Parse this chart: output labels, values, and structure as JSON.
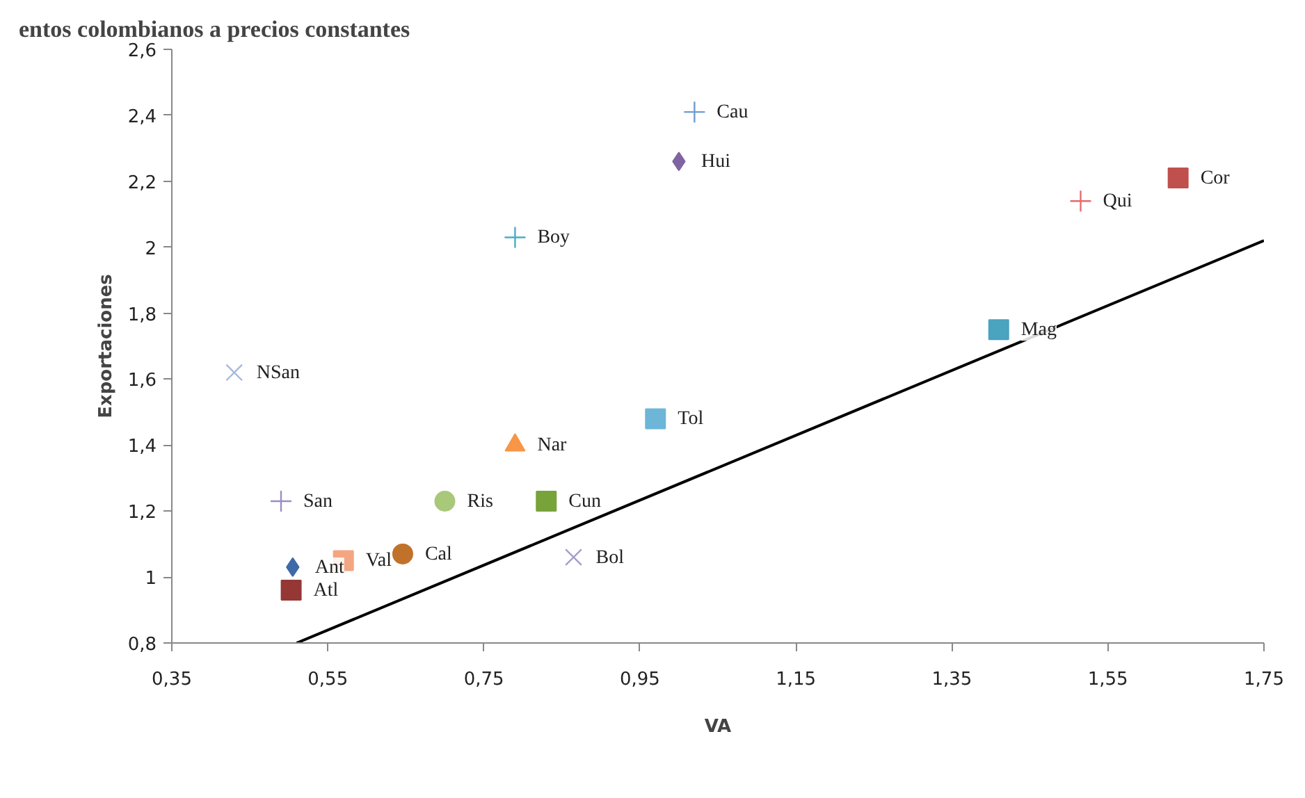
{
  "chart_data": {
    "type": "scatter",
    "title": "entos colombianos a precios constantes",
    "xlabel": "VA",
    "ylabel": "Exportaciones",
    "xlim": [
      0.35,
      1.75
    ],
    "ylim": [
      0.8,
      2.6
    ],
    "xticks": [
      {
        "value": 0.35,
        "label": "0,35"
      },
      {
        "value": 0.55,
        "label": "0,55"
      },
      {
        "value": 0.75,
        "label": "0,75"
      },
      {
        "value": 0.95,
        "label": "0,95"
      },
      {
        "value": 1.15,
        "label": "1,15"
      },
      {
        "value": 1.35,
        "label": "1,35"
      },
      {
        "value": 1.55,
        "label": "1,55"
      },
      {
        "value": 1.75,
        "label": "1,75"
      }
    ],
    "yticks": [
      {
        "value": 0.8,
        "label": "0,8"
      },
      1,
      {
        "value": 1.2,
        "label": "1,2"
      },
      {
        "value": 1.4,
        "label": "1,4"
      },
      {
        "value": 1.6,
        "label": "1,6"
      },
      {
        "value": 1.8,
        "label": "1,8"
      },
      2,
      {
        "value": 2.2,
        "label": "2,2"
      },
      {
        "value": 2.4,
        "label": "2,4"
      },
      {
        "value": 2.6,
        "label": "2,6"
      }
    ],
    "grid": false,
    "series": [
      {
        "name": "Cau",
        "color": "#6f9bd4",
        "marker": "cross",
        "x": [
          1.02
        ],
        "values": [
          2.41
        ]
      },
      {
        "name": "Hui",
        "color": "#8064a2",
        "marker": "diamond",
        "x": [
          1.0
        ],
        "values": [
          2.26
        ]
      },
      {
        "name": "Boy",
        "color": "#4bacc6",
        "marker": "cross",
        "x": [
          0.79
        ],
        "values": [
          2.03
        ]
      },
      {
        "name": "NSan",
        "color": "#a5b8e0",
        "marker": "x",
        "x": [
          0.43
        ],
        "values": [
          1.62
        ]
      },
      {
        "name": "Qui",
        "color": "#e46c6c",
        "marker": "cross",
        "x": [
          1.515
        ],
        "values": [
          2.14
        ]
      },
      {
        "name": "Cor",
        "color": "#c0504d",
        "marker": "square",
        "x": [
          1.64
        ],
        "values": [
          2.21
        ]
      },
      {
        "name": "Mag",
        "color": "#4aa3bf",
        "marker": "square",
        "x": [
          1.41
        ],
        "values": [
          1.75
        ]
      },
      {
        "name": "Tol",
        "color": "#6db6d8",
        "marker": "square",
        "x": [
          0.97
        ],
        "values": [
          1.48
        ]
      },
      {
        "name": "Nar",
        "color": "#f79646",
        "marker": "triangle",
        "x": [
          0.79
        ],
        "values": [
          1.4
        ]
      },
      {
        "name": "San",
        "color": "#9b8dc4",
        "marker": "cross",
        "x": [
          0.49
        ],
        "values": [
          1.23
        ]
      },
      {
        "name": "Ris",
        "color": "#a8c87a",
        "marker": "circle",
        "x": [
          0.7
        ],
        "values": [
          1.23
        ]
      },
      {
        "name": "Cun",
        "color": "#77a33a",
        "marker": "square",
        "x": [
          0.83
        ],
        "values": [
          1.23
        ]
      },
      {
        "name": "Bol",
        "color": "#a79dc9",
        "marker": "x",
        "x": [
          0.865
        ],
        "values": [
          1.06
        ]
      },
      {
        "name": "Cal",
        "color": "#c0722a",
        "marker": "circle",
        "x": [
          0.646
        ],
        "values": [
          1.07
        ]
      },
      {
        "name": "Val",
        "color": "#f4a582",
        "marker": "square",
        "x": [
          0.57
        ],
        "values": [
          1.05
        ]
      },
      {
        "name": "Ant",
        "color": "#3e6aa8",
        "marker": "diamond",
        "x": [
          0.505
        ],
        "values": [
          1.03
        ]
      },
      {
        "name": "Atl",
        "color": "#953735",
        "marker": "square",
        "x": [
          0.503
        ],
        "values": [
          0.96
        ]
      },
      {
        "type": "line",
        "color": "#000000",
        "marker": "none",
        "x": [
          0.51,
          1.75
        ],
        "values": [
          0.8,
          2.02
        ]
      }
    ]
  }
}
